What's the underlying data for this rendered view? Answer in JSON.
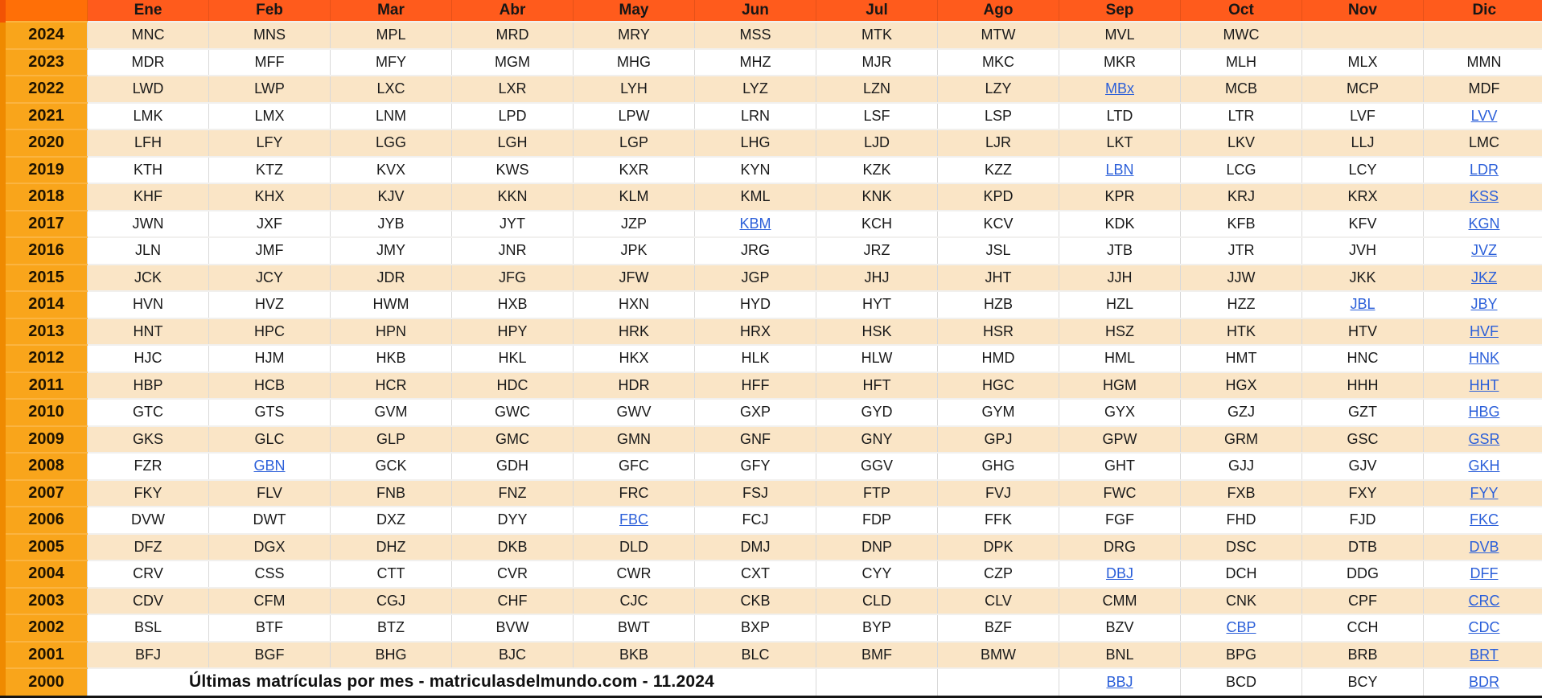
{
  "app": {
    "caption": "Últimas matrículas por mes - matriculasdelmundo.com - 11.2024"
  },
  "colors": {
    "header_bg": "#ff5b1c",
    "corner_bg": "#ff6f07",
    "year_bg": "#f9a51b",
    "year_edge": "#ef8a00",
    "row_tint": "#fae5c6",
    "row_plain": "#ffffff",
    "link": "#2b5fd9",
    "text": "#1a1a1a",
    "grid": "#d9d9d9",
    "bottom_border": "#141414"
  },
  "months": [
    "Ene",
    "Feb",
    "Mar",
    "Abr",
    "May",
    "Jun",
    "Jul",
    "Ago",
    "Sep",
    "Oct",
    "Nov",
    "Dic"
  ],
  "rows": [
    {
      "year": "2024",
      "tint": true,
      "links": [],
      "cells": [
        "MNC",
        "MNS",
        "MPL",
        "MRD",
        "MRY",
        "MSS",
        "MTK",
        "MTW",
        "MVL",
        "MWC",
        "",
        ""
      ]
    },
    {
      "year": "2023",
      "tint": false,
      "links": [],
      "cells": [
        "MDR",
        "MFF",
        "MFY",
        "MGM",
        "MHG",
        "MHZ",
        "MJR",
        "MKC",
        "MKR",
        "MLH",
        "MLX",
        "MMN"
      ]
    },
    {
      "year": "2022",
      "tint": true,
      "links": [
        8
      ],
      "cells": [
        "LWD",
        "LWP",
        "LXC",
        "LXR",
        "LYH",
        "LYZ",
        "LZN",
        "LZY",
        "MBx",
        "MCB",
        "MCP",
        "MDF"
      ]
    },
    {
      "year": "2021",
      "tint": false,
      "links": [
        11
      ],
      "cells": [
        "LMK",
        "LMX",
        "LNM",
        "LPD",
        "LPW",
        "LRN",
        "LSF",
        "LSP",
        "LTD",
        "LTR",
        "LVF",
        "LVV"
      ]
    },
    {
      "year": "2020",
      "tint": true,
      "links": [],
      "cells": [
        "LFH",
        "LFY",
        "LGG",
        "LGH",
        "LGP",
        "LHG",
        "LJD",
        "LJR",
        "LKT",
        "LKV",
        "LLJ",
        "LMC"
      ]
    },
    {
      "year": "2019",
      "tint": false,
      "links": [
        8,
        11
      ],
      "cells": [
        "KTH",
        "KTZ",
        "KVX",
        "KWS",
        "KXR",
        "KYN",
        "KZK",
        "KZZ",
        "LBN",
        "LCG",
        "LCY",
        "LDR"
      ]
    },
    {
      "year": "2018",
      "tint": true,
      "links": [
        11
      ],
      "cells": [
        "KHF",
        "KHX",
        "KJV",
        "KKN",
        "KLM",
        "KML",
        "KNK",
        "KPD",
        "KPR",
        "KRJ",
        "KRX",
        "KSS"
      ]
    },
    {
      "year": "2017",
      "tint": false,
      "links": [
        5,
        11
      ],
      "cells": [
        "JWN",
        "JXF",
        "JYB",
        "JYT",
        "JZP",
        "KBM",
        "KCH",
        "KCV",
        "KDK",
        "KFB",
        "KFV",
        "KGN"
      ]
    },
    {
      "year": "2016",
      "tint": false,
      "links": [
        11
      ],
      "cells": [
        "JLN",
        "JMF",
        "JMY",
        "JNR",
        "JPK",
        "JRG",
        "JRZ",
        "JSL",
        "JTB",
        "JTR",
        "JVH",
        "JVZ"
      ]
    },
    {
      "year": "2015",
      "tint": true,
      "links": [
        11
      ],
      "cells": [
        "JCK",
        "JCY",
        "JDR",
        "JFG",
        "JFW",
        "JGP",
        "JHJ",
        "JHT",
        "JJH",
        "JJW",
        "JKK",
        "JKZ"
      ]
    },
    {
      "year": "2014",
      "tint": false,
      "links": [
        10,
        11
      ],
      "cells": [
        "HVN",
        "HVZ",
        "HWM",
        "HXB",
        "HXN",
        "HYD",
        "HYT",
        "HZB",
        "HZL",
        "HZZ",
        "JBL",
        "JBY"
      ]
    },
    {
      "year": "2013",
      "tint": true,
      "links": [
        11
      ],
      "cells": [
        "HNT",
        "HPC",
        "HPN",
        "HPY",
        "HRK",
        "HRX",
        "HSK",
        "HSR",
        "HSZ",
        "HTK",
        "HTV",
        "HVF"
      ]
    },
    {
      "year": "2012",
      "tint": false,
      "links": [
        11
      ],
      "cells": [
        "HJC",
        "HJM",
        "HKB",
        "HKL",
        "HKX",
        "HLK",
        "HLW",
        "HMD",
        "HML",
        "HMT",
        "HNC",
        "HNK"
      ]
    },
    {
      "year": "2011",
      "tint": true,
      "links": [
        11
      ],
      "cells": [
        "HBP",
        "HCB",
        "HCR",
        "HDC",
        "HDR",
        "HFF",
        "HFT",
        "HGC",
        "HGM",
        "HGX",
        "HHH",
        "HHT"
      ]
    },
    {
      "year": "2010",
      "tint": false,
      "links": [
        11
      ],
      "cells": [
        "GTC",
        "GTS",
        "GVM",
        "GWC",
        "GWV",
        "GXP",
        "GYD",
        "GYM",
        "GYX",
        "GZJ",
        "GZT",
        "HBG"
      ]
    },
    {
      "year": "2009",
      "tint": true,
      "links": [
        11
      ],
      "cells": [
        "GKS",
        "GLC",
        "GLP",
        "GMC",
        "GMN",
        "GNF",
        "GNY",
        "GPJ",
        "GPW",
        "GRM",
        "GSC",
        "GSR"
      ]
    },
    {
      "year": "2008",
      "tint": false,
      "links": [
        1,
        11
      ],
      "cells": [
        "FZR",
        "GBN",
        "GCK",
        "GDH",
        "GFC",
        "GFY",
        "GGV",
        "GHG",
        "GHT",
        "GJJ",
        "GJV",
        "GKH"
      ]
    },
    {
      "year": "2007",
      "tint": true,
      "links": [
        11
      ],
      "cells": [
        "FKY",
        "FLV",
        "FNB",
        "FNZ",
        "FRC",
        "FSJ",
        "FTP",
        "FVJ",
        "FWC",
        "FXB",
        "FXY",
        "FYY"
      ]
    },
    {
      "year": "2006",
      "tint": false,
      "links": [
        4,
        11
      ],
      "cells": [
        "DVW",
        "DWT",
        "DXZ",
        "DYY",
        "FBC",
        "FCJ",
        "FDP",
        "FFK",
        "FGF",
        "FHD",
        "FJD",
        "FKC"
      ]
    },
    {
      "year": "2005",
      "tint": true,
      "links": [
        11
      ],
      "cells": [
        "DFZ",
        "DGX",
        "DHZ",
        "DKB",
        "DLD",
        "DMJ",
        "DNP",
        "DPK",
        "DRG",
        "DSC",
        "DTB",
        "DVB"
      ]
    },
    {
      "year": "2004",
      "tint": false,
      "links": [
        8,
        11
      ],
      "cells": [
        "CRV",
        "CSS",
        "CTT",
        "CVR",
        "CWR",
        "CXT",
        "CYY",
        "CZP",
        "DBJ",
        "DCH",
        "DDG",
        "DFF"
      ]
    },
    {
      "year": "2003",
      "tint": true,
      "links": [
        11
      ],
      "cells": [
        "CDV",
        "CFM",
        "CGJ",
        "CHF",
        "CJC",
        "CKB",
        "CLD",
        "CLV",
        "CMM",
        "CNK",
        "CPF",
        "CRC"
      ]
    },
    {
      "year": "2002",
      "tint": false,
      "links": [
        9,
        11
      ],
      "cells": [
        "BSL",
        "BTF",
        "BTZ",
        "BVW",
        "BWT",
        "BXP",
        "BYP",
        "BZF",
        "BZV",
        "CBP",
        "CCH",
        "CDC"
      ]
    },
    {
      "year": "2001",
      "tint": true,
      "links": [
        11
      ],
      "cells": [
        "BFJ",
        "BGF",
        "BHG",
        "BJC",
        "BKB",
        "BLC",
        "BMF",
        "BMW",
        "BNL",
        "BPG",
        "BRB",
        "BRT"
      ]
    },
    {
      "year": "2000",
      "tint": false,
      "links": [
        8,
        11
      ],
      "caption_colspan": 6,
      "cells": [
        "",
        "",
        "",
        "",
        "",
        "",
        "",
        "",
        "BBJ",
        "BCD",
        "BCY",
        "BDR"
      ]
    }
  ]
}
